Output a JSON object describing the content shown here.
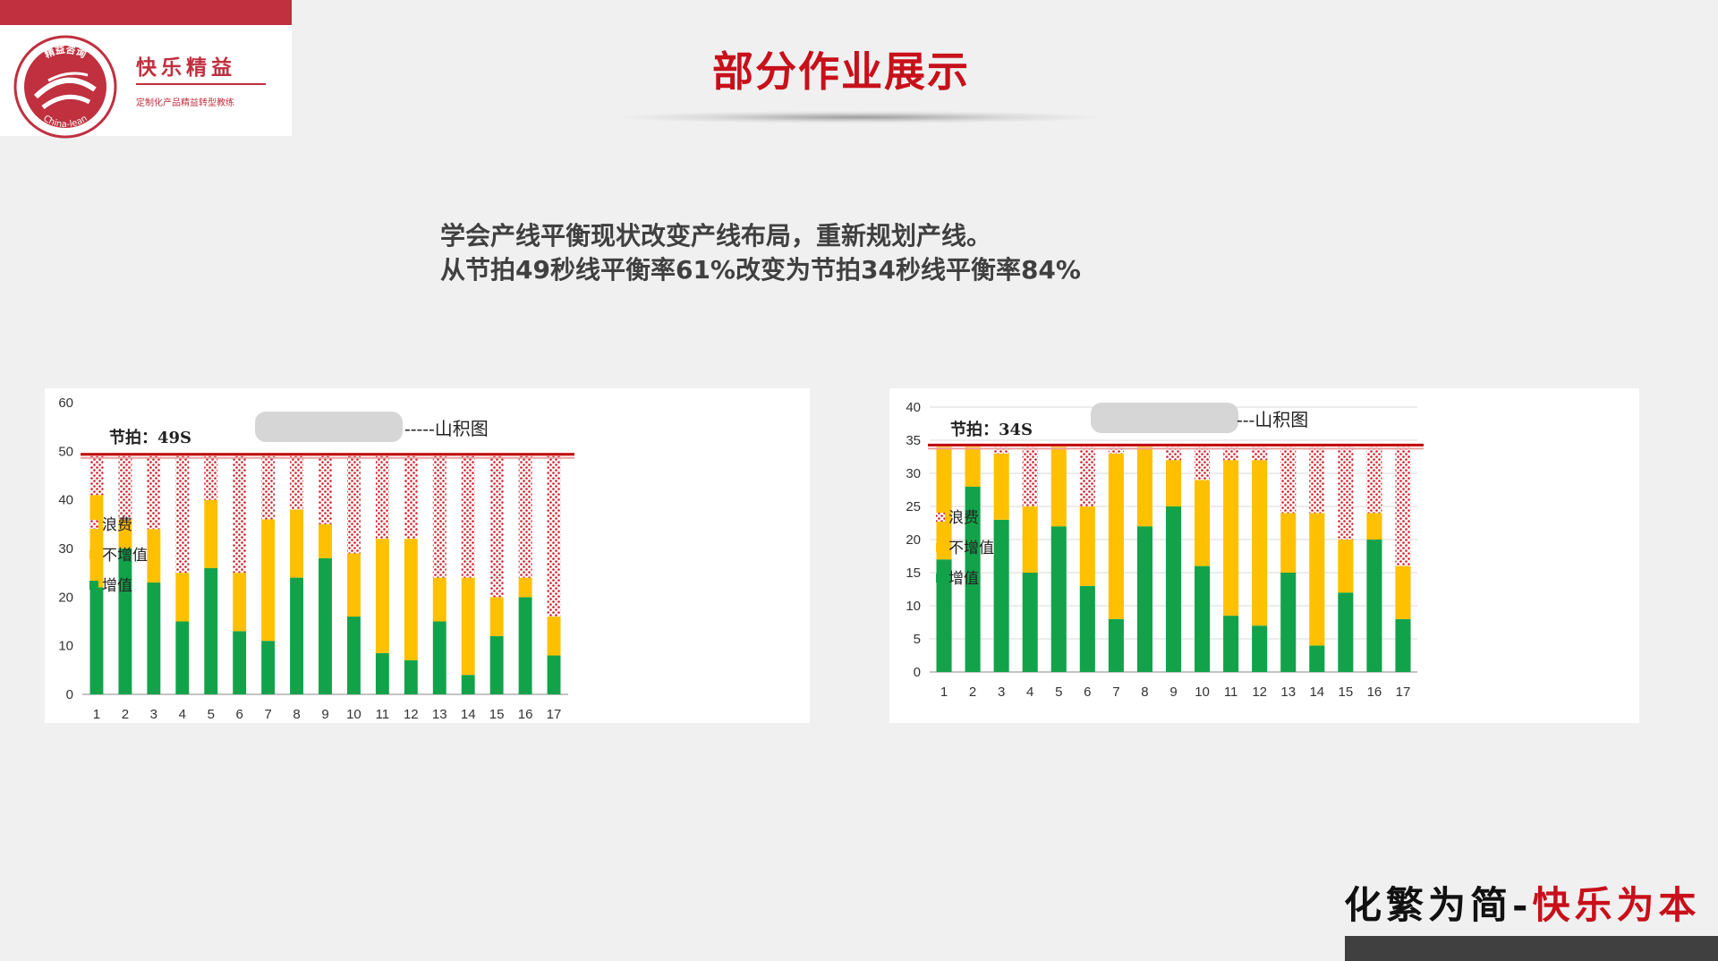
{
  "brand": {
    "seal_top_text": "精益咨询",
    "seal_bottom_text": "China-lean",
    "name": "快乐精益",
    "tagline": "定制化产品精益转型教练",
    "color": "#c0303f"
  },
  "page_title": "部分作业展示",
  "description": {
    "line1": "学会产线平衡现状改变产线布局，重新规划产线。",
    "line2": "从节拍49秒线平衡率61%改变为节拍34秒线平衡率84%"
  },
  "chart_data": [
    {
      "type": "bar",
      "stacked": true,
      "categories": [
        "1",
        "2",
        "3",
        "4",
        "5",
        "6",
        "7",
        "8",
        "9",
        "10",
        "11",
        "12",
        "13",
        "14",
        "15",
        "16",
        "17"
      ],
      "series": [
        {
          "name": "增值",
          "color": "#12a34a",
          "values": [
            22,
            30,
            23,
            15,
            26,
            13,
            11,
            24,
            28,
            16,
            8.5,
            7,
            15,
            4,
            12,
            20,
            8
          ]
        },
        {
          "name": "不增值",
          "color": "#ffc000",
          "values": [
            19,
            6,
            11,
            10,
            14,
            12,
            25,
            14,
            7,
            13,
            23.5,
            25,
            9,
            20,
            8,
            4,
            8
          ]
        },
        {
          "name": "浪费",
          "color": "#c00000",
          "pattern": "dotted",
          "values": [
            8,
            13,
            15,
            24,
            9,
            24,
            13,
            11,
            14,
            20,
            17,
            17,
            25,
            25,
            29,
            25,
            33
          ]
        }
      ],
      "ylim": [
        0,
        60
      ],
      "yticks": [
        "0",
        "10",
        "20",
        "30",
        "40",
        "50",
        "60"
      ],
      "takt_line": 49,
      "takt_label": "节拍：49S",
      "chart_label": "-----山积图",
      "legend_position": "right",
      "grid": false
    },
    {
      "type": "bar",
      "stacked": true,
      "categories": [
        "1",
        "2",
        "3",
        "4",
        "5",
        "6",
        "7",
        "8",
        "9",
        "10",
        "11",
        "12",
        "13",
        "14",
        "15",
        "16",
        "17"
      ],
      "series": [
        {
          "name": "增值",
          "color": "#12a34a",
          "values": [
            17,
            28,
            23,
            15,
            22,
            13,
            8,
            22,
            25,
            16,
            8.5,
            7,
            15,
            4,
            12,
            20,
            8
          ]
        },
        {
          "name": "不增值",
          "color": "#ffc000",
          "values": [
            17,
            6,
            10,
            10,
            12,
            12,
            25,
            12,
            7,
            13,
            23.5,
            25,
            9,
            20,
            8,
            4,
            8
          ]
        },
        {
          "name": "浪费",
          "color": "#c00000",
          "pattern": "dotted",
          "values": [
            0,
            0,
            1,
            9,
            0,
            9,
            1,
            0,
            2,
            5,
            2,
            2,
            10,
            10,
            14,
            10,
            18
          ]
        }
      ],
      "ylim": [
        0,
        40
      ],
      "yticks": [
        "0",
        "5",
        "10",
        "15",
        "20",
        "25",
        "30",
        "35",
        "40"
      ],
      "takt_line": 34,
      "takt_label": "节拍：34S",
      "chart_label": "---山积图",
      "legend_position": "right",
      "grid": true
    }
  ],
  "slogan": {
    "part1": "化繁为简",
    "separator": "-",
    "part2": "快乐为本"
  }
}
